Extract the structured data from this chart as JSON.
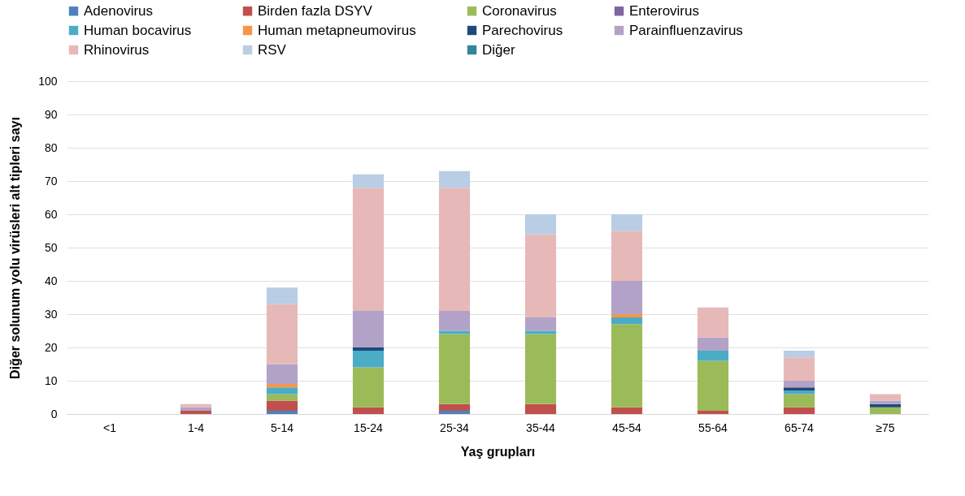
{
  "chart_data": {
    "type": "bar",
    "stacked": true,
    "xlabel": "Yaş grupları",
    "ylabel": "Diğer solunum yolu virüsleri alt tipleri sayı",
    "categories": [
      "<1",
      "1-4",
      "5-14",
      "15-24",
      "25-34",
      "35-44",
      "45-54",
      "55-64",
      "65-74",
      "≥75"
    ],
    "series": [
      {
        "name": "Adenovirus",
        "color": "#4f81bd",
        "values": [
          0,
          0,
          1,
          0,
          1,
          0,
          0,
          0,
          0,
          0
        ]
      },
      {
        "name": "Birden fazla DSYV",
        "color": "#c0504d",
        "values": [
          0,
          1,
          3,
          2,
          2,
          3,
          2,
          1,
          2,
          0
        ]
      },
      {
        "name": "Coronavirus",
        "color": "#9bbb59",
        "values": [
          0,
          0,
          2,
          12,
          21,
          21,
          25,
          15,
          4,
          2
        ]
      },
      {
        "name": "Enterovirus",
        "color": "#8064a2",
        "values": [
          0,
          0,
          0,
          0,
          0,
          0,
          0,
          0,
          0,
          0
        ]
      },
      {
        "name": "Human bocavirus",
        "color": "#4bacc6",
        "values": [
          0,
          0,
          2,
          5,
          1,
          1,
          2,
          3,
          1,
          0
        ]
      },
      {
        "name": "Human metapneumovirus",
        "color": "#f79646",
        "values": [
          0,
          0,
          1,
          0,
          0,
          0,
          1,
          0,
          0,
          0
        ]
      },
      {
        "name": "Parechovirus",
        "color": "#1f497d",
        "values": [
          0,
          0,
          0,
          1,
          0,
          0,
          0,
          0,
          1,
          1
        ]
      },
      {
        "name": "Parainfluenzavirus",
        "color": "#b3a2c7",
        "values": [
          0,
          1,
          6,
          11,
          6,
          4,
          10,
          4,
          2,
          1
        ]
      },
      {
        "name": "Rhinovirus",
        "color": "#e6b9b8",
        "values": [
          0,
          1,
          18,
          37,
          37,
          25,
          15,
          9,
          7,
          2
        ]
      },
      {
        "name": "RSV",
        "color": "#b9cde5",
        "values": [
          0,
          0,
          5,
          4,
          5,
          6,
          5,
          0,
          2,
          0
        ]
      },
      {
        "name": "Diğer",
        "color": "#31859c",
        "values": [
          0,
          0,
          0,
          0,
          0,
          0,
          0,
          0,
          0,
          0
        ]
      }
    ],
    "ylim": [
      0,
      100
    ],
    "yticks": [
      0,
      10,
      20,
      30,
      40,
      50,
      60,
      70,
      80,
      90,
      100
    ],
    "grid": "y",
    "legend": "top"
  }
}
